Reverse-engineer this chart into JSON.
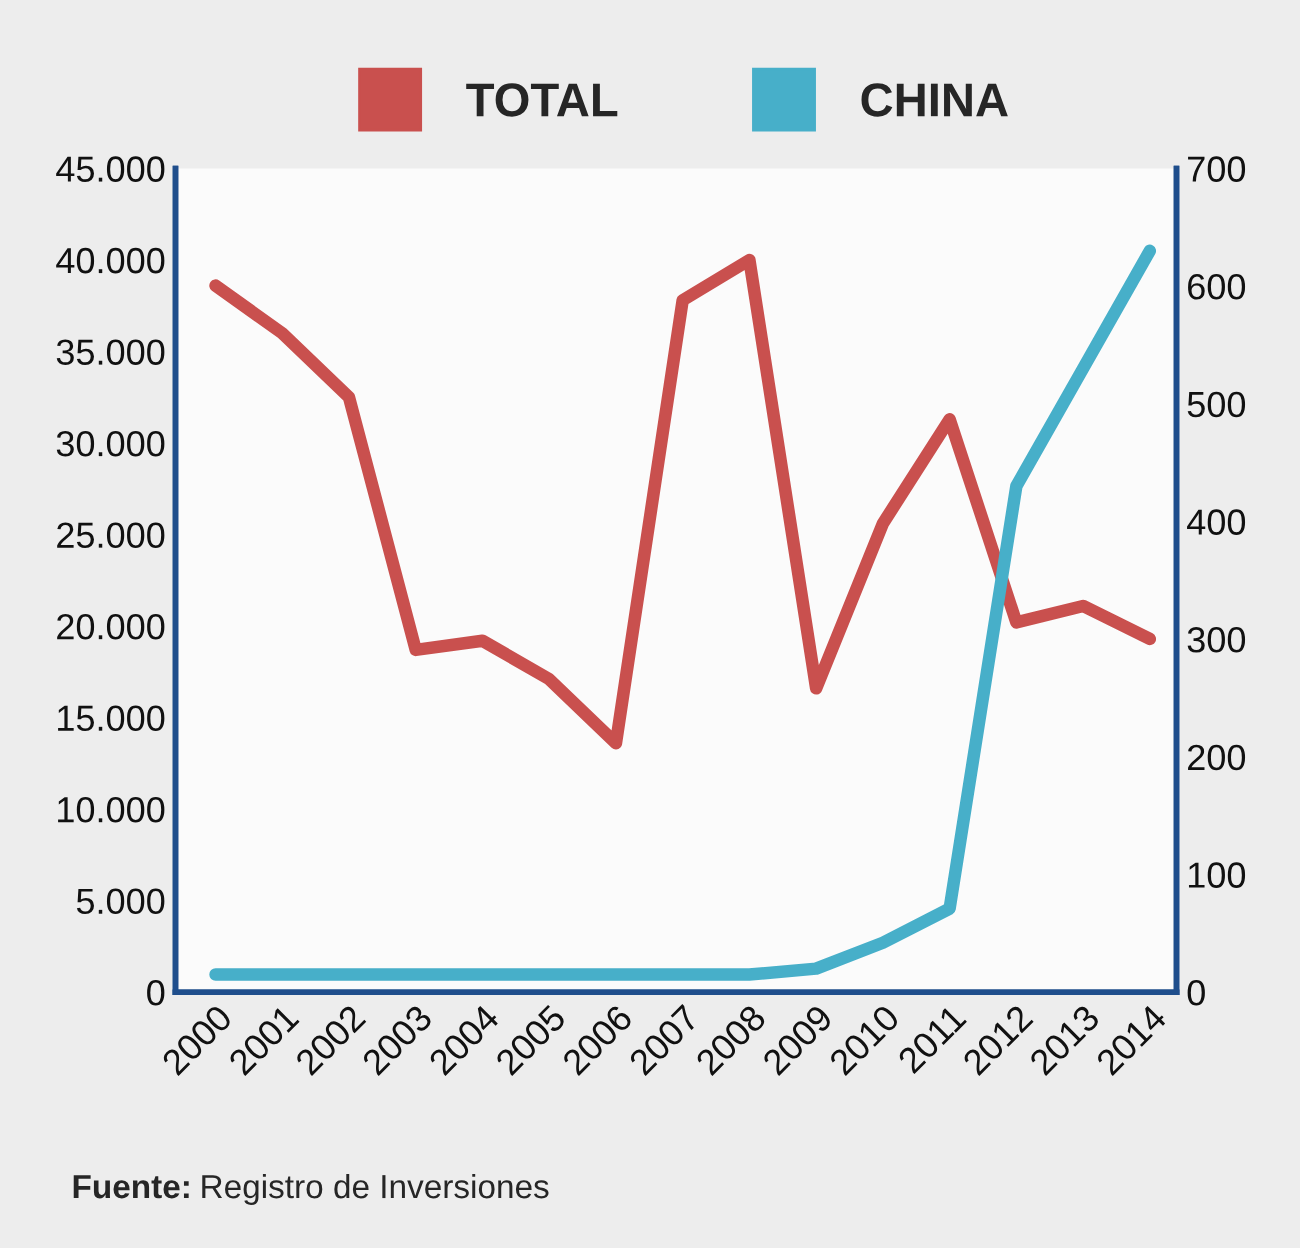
{
  "chart_data": {
    "type": "line",
    "categories": [
      "2000",
      "2001",
      "2002",
      "2003",
      "2004",
      "2005",
      "2006",
      "2007",
      "2008",
      "2009",
      "2010",
      "2011",
      "2012",
      "2013",
      "2014"
    ],
    "series": [
      {
        "name": "TOTAL",
        "color": "#c9504e",
        "values": [
          38600,
          36000,
          32500,
          18700,
          19200,
          17100,
          13600,
          37800,
          40000,
          16600,
          25600,
          31300,
          20200,
          21100,
          19300
        ]
      },
      {
        "name": "CHINA",
        "color": "#47afc9",
        "axis": "y2",
        "values": [
          15,
          15,
          15,
          15,
          15,
          15,
          15,
          15,
          15,
          20,
          42,
          71,
          430,
          530,
          630
        ]
      }
    ],
    "ylim": [
      0,
      45000
    ],
    "yticks": [
      0,
      {
        "value": 5000,
        "label": "5.000"
      },
      {
        "value": 10000,
        "label": "10.000"
      },
      {
        "value": 15000,
        "label": "15.000"
      },
      {
        "value": 20000,
        "label": "20.000"
      },
      {
        "value": 25000,
        "label": "25.000"
      },
      {
        "value": 30000,
        "label": "30.000"
      },
      {
        "value": 35000,
        "label": "35.000"
      },
      {
        "value": 40000,
        "label": "40.000"
      },
      {
        "value": 45000,
        "label": "45.000"
      }
    ],
    "y2lim": [
      0,
      700
    ],
    "y2ticks": [
      0,
      100,
      200,
      300,
      400,
      500,
      600,
      700
    ],
    "legend": "top",
    "grid": false,
    "marker": "none",
    "line_style": "solid",
    "annotations": [
      "Fuente: Registro de Inversiones"
    ]
  }
}
